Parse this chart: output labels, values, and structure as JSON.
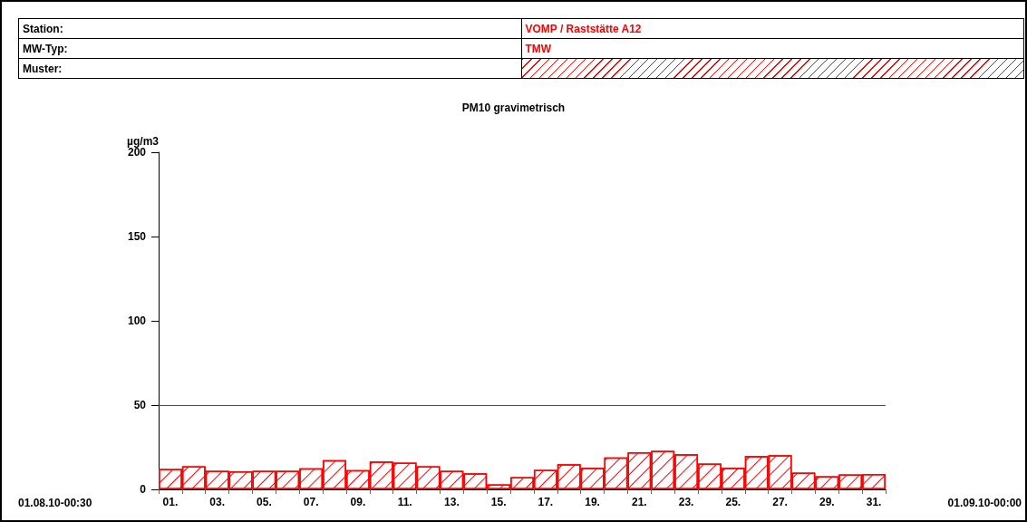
{
  "chart_data": {
    "type": "bar",
    "title": "PM10 gravimetrisch",
    "ylabel": "µg/m3",
    "categories": [
      "01.",
      null,
      "03.",
      null,
      "05.",
      null,
      "07.",
      null,
      "09.",
      null,
      "11.",
      null,
      "13.",
      null,
      "15.",
      null,
      "17.",
      null,
      "19.",
      null,
      "21.",
      null,
      "23.",
      null,
      "25.",
      null,
      "27.",
      null,
      "29.",
      null,
      "31."
    ],
    "values": [
      12.1,
      13.7,
      11.0,
      10.7,
      11.0,
      11.0,
      12.5,
      17.4,
      11.4,
      16.5,
      15.8,
      13.7,
      11.0,
      9.6,
      3.0,
      7.3,
      11.6,
      14.9,
      12.8,
      18.9,
      22.1,
      22.8,
      20.8,
      15.3,
      12.8,
      19.8,
      20.3,
      10.0,
      7.8,
      8.9,
      9.1
    ],
    "color": "#ff0000",
    "ylim": [
      0,
      200
    ],
    "yticks": [
      0,
      50,
      100,
      150,
      200
    ],
    "ref_lines": [
      {
        "axis": "y",
        "value": 50,
        "color": "#ff0000"
      }
    ],
    "grid": false,
    "annotations": [
      "Station:",
      "VOMP / Raststätte A12",
      "MW-Typ:",
      "TMW",
      "Muster:",
      "01.08.10-00:30",
      "01.09.10-00:00"
    ]
  }
}
